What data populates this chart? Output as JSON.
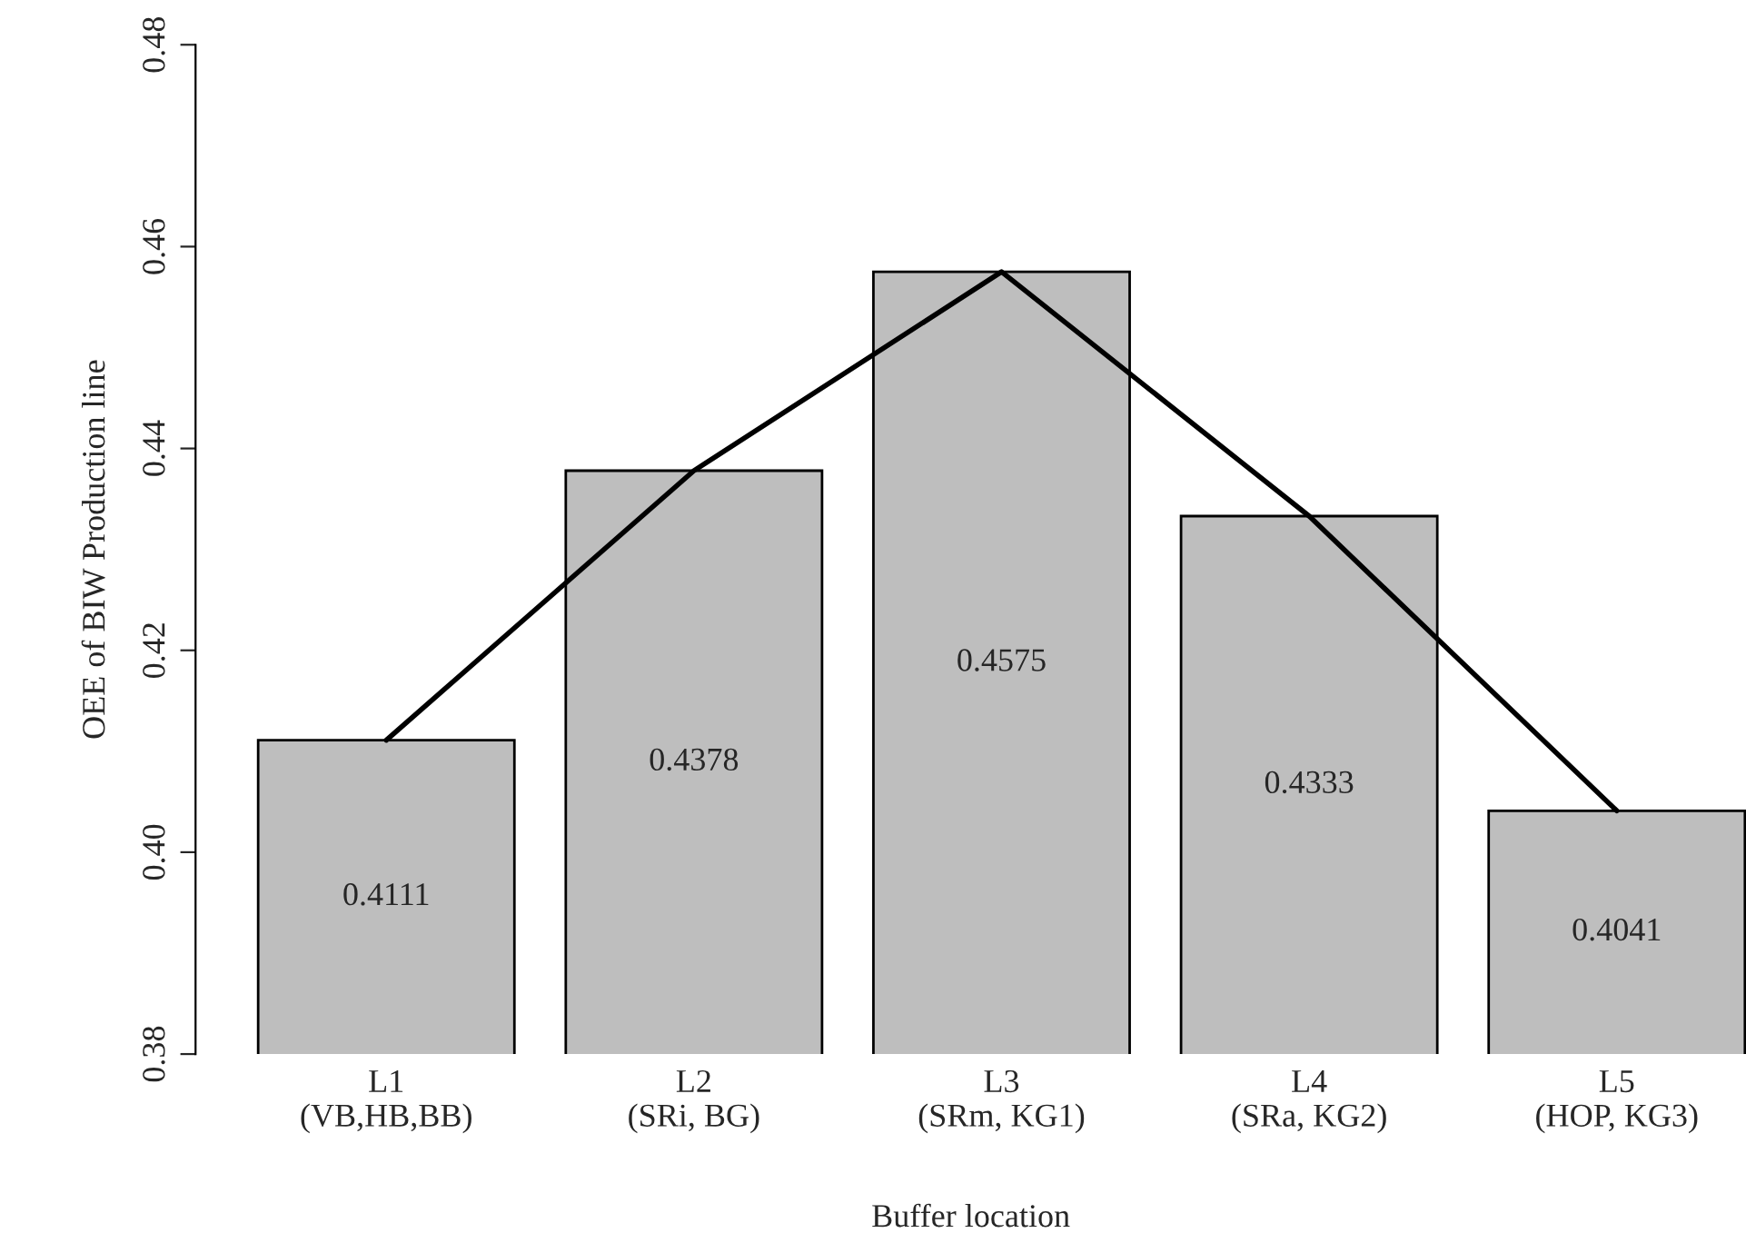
{
  "chart_data": {
    "type": "bar",
    "xlabel": "Buffer location",
    "ylabel": "OEE of BIW Production line",
    "categories": [
      "L1\n(VB,HB,BB)",
      "L2\n(SRi, BG)",
      "L3\n(SRm, KG1)",
      "L4\n(SRa, KG2)",
      "L5\n(HOP, KG3)"
    ],
    "series": [
      {
        "color": "#bebebe",
        "values": [
          0.4111,
          0.4378,
          0.4575,
          0.4333,
          0.4041
        ],
        "value_labels": [
          "0.4111",
          "0.4378",
          "0.4575",
          "0.4333",
          "0.4041"
        ]
      },
      {
        "type": "line",
        "color": "#000000",
        "values": [
          0.4111,
          0.4378,
          0.4575,
          0.4333,
          0.4041
        ]
      }
    ],
    "ylim": [
      0.38,
      0.48
    ],
    "yticks": [
      {
        "value": 0.38,
        "label": "0.38"
      },
      {
        "value": 0.4,
        "label": "0.40"
      },
      {
        "value": 0.42,
        "label": "0.42"
      },
      {
        "value": 0.44,
        "label": "0.44"
      },
      {
        "value": 0.46,
        "label": "0.46"
      },
      {
        "value": 0.48,
        "label": "0.48"
      }
    ],
    "grid": false,
    "legend": false,
    "marker": "none",
    "line_style": "solid"
  }
}
